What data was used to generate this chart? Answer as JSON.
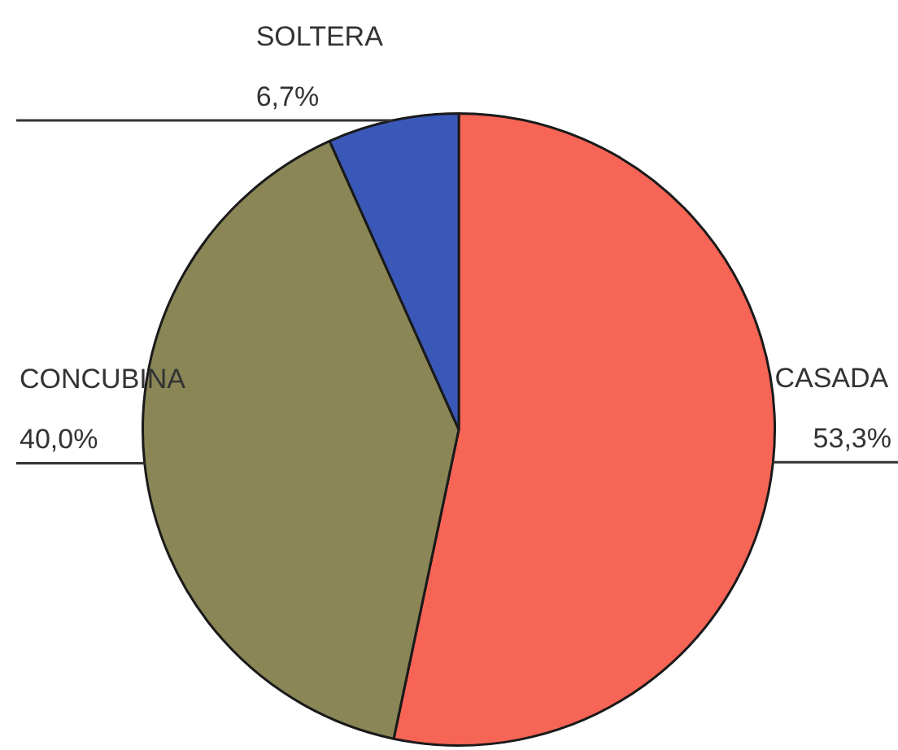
{
  "chart_data": {
    "type": "pie",
    "categories": [
      "CASADA",
      "CONCUBINA",
      "SOLTERA"
    ],
    "values": [
      53.3,
      40.0,
      6.7
    ],
    "value_labels": [
      "53,3%",
      "40,0%",
      "6,7%"
    ],
    "colors": [
      "#f76556",
      "#8a8656",
      "#3a58b8"
    ]
  }
}
